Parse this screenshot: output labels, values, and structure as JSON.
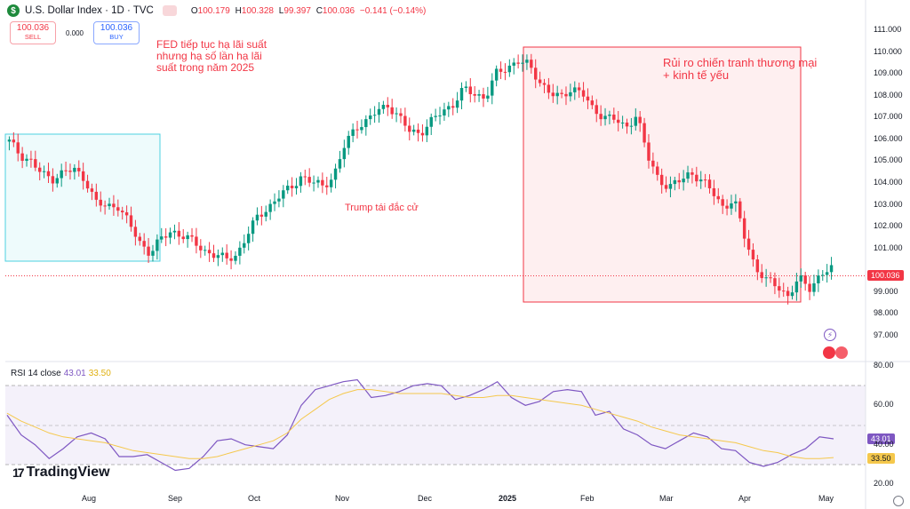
{
  "header": {
    "symbol_initial": "$",
    "symbol": "U.S. Dollar Index · 1D · TVC",
    "open_label": "O",
    "open": "100.179",
    "high_label": "H",
    "high": "100.328",
    "low_label": "L",
    "low": "99.397",
    "close_label": "C",
    "close": "100.036",
    "change": "−0.141 (−0.14%)"
  },
  "trade": {
    "sell_price": "100.036",
    "sell_label": "SELL",
    "spread": "0.000",
    "buy_price": "100.036",
    "buy_label": "BUY"
  },
  "annotations": {
    "fed_line1": "FED tiếp tục hạ lãi suất",
    "fed_line2": "nhưng hạ số lần hạ lãi",
    "fed_line3": "suất trong năm 2025",
    "trump": "Trump tái đắc cử",
    "risk_line1": "Rủi ro chiến tranh thương mại",
    "risk_line2": "+ kinh tế yếu"
  },
  "rsi_legend": {
    "label": "RSI 14 close",
    "rsi": "43.01",
    "ma": "33.50"
  },
  "brand": {
    "mark": "17",
    "name": "TradingView"
  },
  "colors": {
    "up": "#089981",
    "down": "#f23645",
    "rsi": "#7e57c2",
    "rsi_ma": "#f5c84c",
    "box_blue": "#4dd0e1",
    "box_red": "#f23645"
  },
  "chart_data": [
    {
      "type": "candlestick",
      "title": "U.S. Dollar Index · 1D · TVC",
      "ylim": [
        96.5,
        111.5
      ],
      "price_ticks": [
        "111.000",
        "110.000",
        "109.000",
        "108.000",
        "107.000",
        "106.000",
        "105.000",
        "104.000",
        "103.000",
        "102.000",
        "101.000",
        "99.000",
        "98.000",
        "97.000"
      ],
      "last_price": "100.036",
      "x_ticks": [
        "Aug",
        "Sep",
        "Oct",
        "Nov",
        "Dec",
        "2025",
        "Feb",
        "Mar",
        "Apr",
        "May"
      ],
      "close_path": [
        105.9,
        105.3,
        105.0,
        104.4,
        104.2,
        104.5,
        104.6,
        104.2,
        103.1,
        102.9,
        103.0,
        102.2,
        101.3,
        100.8,
        101.4,
        101.8,
        101.6,
        101.3,
        100.9,
        100.7,
        100.5,
        100.7,
        101.6,
        102.5,
        102.9,
        103.4,
        103.8,
        104.3,
        104.0,
        103.9,
        104.3,
        105.7,
        106.6,
        106.8,
        107.3,
        107.6,
        107.0,
        106.4,
        106.3,
        106.8,
        107.3,
        107.6,
        108.3,
        108.1,
        107.9,
        109.0,
        109.3,
        109.6,
        109.4,
        108.7,
        108.1,
        107.9,
        108.4,
        108.1,
        107.3,
        107.1,
        106.9,
        106.5,
        107.2,
        105.2,
        104.2,
        103.8,
        104.1,
        104.5,
        104.1,
        103.6,
        102.9,
        103.2,
        101.5,
        100.1,
        99.5,
        99.3,
        98.8,
        99.6,
        99.2,
        99.8,
        100.036
      ]
    },
    {
      "type": "line",
      "title": "RSI 14 close",
      "ylim": [
        20,
        80
      ],
      "y_ticks": [
        "80.00",
        "60.00",
        "40.00",
        "20.00"
      ],
      "levels": [
        70,
        50,
        30
      ],
      "series": [
        {
          "name": "RSI 14 close",
          "values": [
            55,
            45,
            40,
            33,
            38,
            44,
            46,
            43,
            34,
            34,
            35,
            31,
            27,
            28,
            34,
            42,
            43,
            40,
            39,
            38,
            45,
            60,
            68,
            70,
            72,
            73,
            64,
            65,
            67,
            70,
            71,
            70,
            63,
            65,
            68,
            72,
            64,
            60,
            62,
            67,
            68,
            67,
            55,
            57,
            48,
            45,
            40,
            38,
            42,
            46,
            44,
            38,
            37,
            31,
            29,
            31,
            35,
            38,
            44,
            43.01
          ]
        },
        {
          "name": "MA",
          "values": [
            56,
            52,
            49,
            46,
            44,
            43,
            42,
            41,
            39,
            37,
            36,
            35,
            34,
            33,
            33,
            34,
            36,
            38,
            40,
            42,
            46,
            53,
            58,
            63,
            66,
            68,
            68,
            67,
            66,
            66,
            66,
            66,
            65,
            64,
            64,
            65,
            65,
            64,
            63,
            62,
            61,
            60,
            58,
            56,
            54,
            52,
            49,
            47,
            45,
            44,
            43,
            42,
            41,
            39,
            37,
            36,
            34,
            33,
            33,
            33.5
          ]
        }
      ]
    }
  ]
}
